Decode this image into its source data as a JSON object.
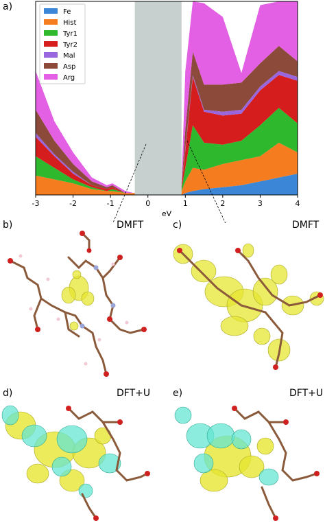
{
  "figure": {
    "panel_a_label": "a)",
    "panel_b_label": "b)",
    "panel_c_label": "c)",
    "panel_d_label": "d)",
    "panel_e_label": "e)",
    "panel_b_method": "DMFT",
    "panel_c_method": "DMFT",
    "panel_d_method": "DFT+U",
    "panel_e_method": "DFT+U"
  },
  "chart_data": {
    "type": "area",
    "xlabel": "eV",
    "ylabel": "",
    "title": "",
    "xlim": [
      -3,
      4
    ],
    "xticks": [
      "-3",
      "-2",
      "-1",
      "0",
      "1",
      "2",
      "3",
      "4"
    ],
    "stacked": true,
    "legend_position": "top-left",
    "gap_region": {
      "x0": -0.35,
      "x1": 0.9,
      "color": "#c8cfcf"
    },
    "x": [
      -3,
      -2.5,
      -2,
      -1.5,
      -1.1,
      -0.95,
      -0.6,
      -0.38,
      0.9,
      1.0,
      1.2,
      1.5,
      2.0,
      2.5,
      3.0,
      3.5,
      4.0
    ],
    "series": [
      {
        "name": "Fe",
        "color": "#3b86d6",
        "values": [
          0.0,
          0.0,
          0.0,
          0.0,
          0.0,
          0.0,
          0.0,
          0.0,
          0.0,
          0.01,
          0.02,
          0.03,
          0.04,
          0.05,
          0.07,
          0.09,
          0.11
        ]
      },
      {
        "name": "Hist",
        "color": "#f57c1f",
        "values": [
          0.1,
          0.08,
          0.06,
          0.03,
          0.02,
          0.02,
          0.01,
          0.01,
          0.02,
          0.06,
          0.12,
          0.1,
          0.12,
          0.13,
          0.13,
          0.18,
          0.11
        ]
      },
      {
        "name": "Tyr1",
        "color": "#2db82d",
        "values": [
          0.1,
          0.06,
          0.02,
          0.01,
          0.0,
          0.01,
          0.0,
          0.0,
          0.01,
          0.07,
          0.22,
          0.14,
          0.1,
          0.1,
          0.16,
          0.18,
          0.15
        ]
      },
      {
        "name": "Tyr2",
        "color": "#d61d1d",
        "values": [
          0.1,
          0.06,
          0.03,
          0.01,
          0.01,
          0.01,
          0.0,
          0.0,
          0.01,
          0.09,
          0.25,
          0.16,
          0.15,
          0.14,
          0.18,
          0.17,
          0.22
        ]
      },
      {
        "name": "Mal",
        "color": "#9966dd",
        "values": [
          0.02,
          0.01,
          0.01,
          0.0,
          0.0,
          0.0,
          0.0,
          0.0,
          0.0,
          0.01,
          0.01,
          0.01,
          0.02,
          0.02,
          0.02,
          0.02,
          0.02
        ]
      },
      {
        "name": "Asp",
        "color": "#8c4a3a",
        "values": [
          0.12,
          0.07,
          0.04,
          0.02,
          0.01,
          0.01,
          0.0,
          0.0,
          0.01,
          0.1,
          0.12,
          0.13,
          0.14,
          0.14,
          0.12,
          0.13,
          0.08
        ]
      },
      {
        "name": "Arg",
        "color": "#e35fe3",
        "values": [
          0.2,
          0.1,
          0.06,
          0.02,
          0.01,
          0.01,
          0.01,
          0.0,
          0.02,
          0.3,
          0.5,
          0.42,
          0.35,
          0.05,
          0.3,
          0.5,
          0.35
        ]
      }
    ]
  }
}
